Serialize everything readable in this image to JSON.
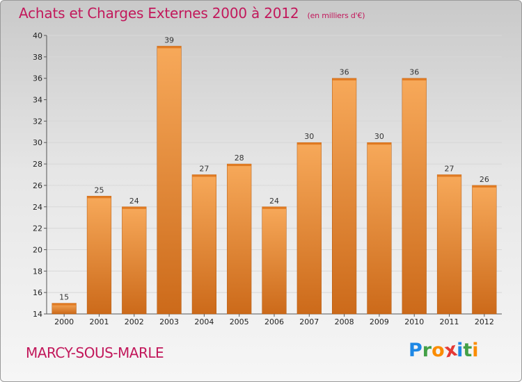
{
  "header": {
    "title": "Achats et Charges Externes 2000 à 2012",
    "subtitle": "(en milliers d'€)"
  },
  "footer": {
    "place": "MARCY-SOUS-MARLE",
    "logo_letters": [
      "P",
      "r",
      "o",
      "x",
      "i",
      "t",
      "i"
    ],
    "logo_colors": [
      "#1e88e5",
      "#43a047",
      "#fb8c00",
      "#e53935",
      "#1e88e5",
      "#43a047",
      "#fb8c00"
    ]
  },
  "colors": {
    "bar_top": "#f7a95a",
    "bar_bottom": "#cc6a1a",
    "accent": "#c2185b"
  },
  "chart_data": {
    "type": "bar",
    "title": "Achats et Charges Externes 2000 à 2012",
    "subtitle": "(en milliers d'€)",
    "categories": [
      "2000",
      "2001",
      "2002",
      "2003",
      "2004",
      "2005",
      "2006",
      "2007",
      "2008",
      "2009",
      "2010",
      "2011",
      "2012"
    ],
    "values": [
      15,
      25,
      24,
      39,
      27,
      28,
      24,
      30,
      36,
      30,
      36,
      27,
      26
    ],
    "ylim": [
      14,
      40
    ],
    "yticks": [
      14,
      16,
      18,
      20,
      22,
      24,
      26,
      28,
      30,
      32,
      34,
      36,
      38,
      40
    ],
    "grid": true,
    "legend": "none"
  }
}
